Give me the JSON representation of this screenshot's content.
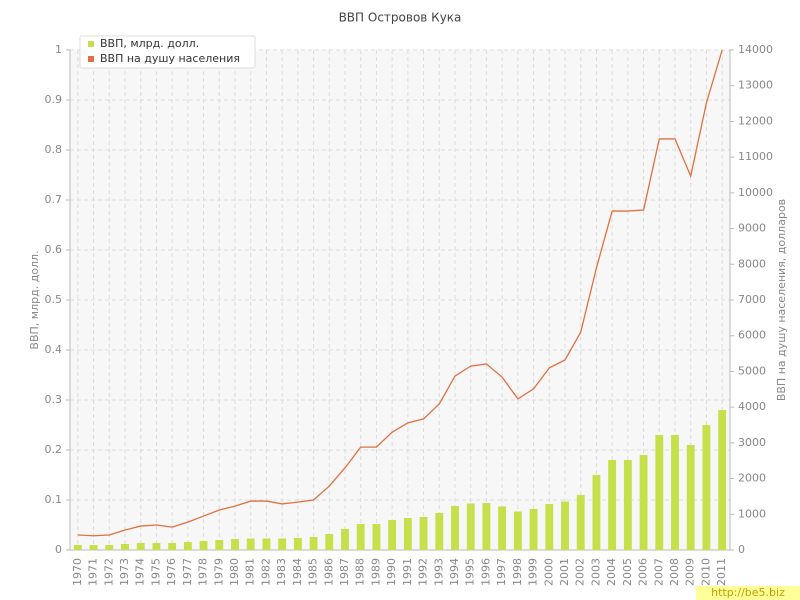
{
  "chart_data": {
    "type": "bar-line",
    "title": "ВВП Островов Кука",
    "y_label": "ВВП, млрд. долл.",
    "y2_label": "ВВП на душу населения, долларов",
    "categories": [
      "1970",
      "1971",
      "1972",
      "1973",
      "1974",
      "1975",
      "1976",
      "1977",
      "1978",
      "1979",
      "1980",
      "1981",
      "1982",
      "1983",
      "1984",
      "1985",
      "1986",
      "1987",
      "1988",
      "1989",
      "1990",
      "1991",
      "1992",
      "1993",
      "1994",
      "1995",
      "1996",
      "1997",
      "1998",
      "1999",
      "2000",
      "2001",
      "2002",
      "2003",
      "2004",
      "2005",
      "2006",
      "2007",
      "2008",
      "2009",
      "2010",
      "2011"
    ],
    "series": [
      {
        "name": "ВВП, млрд. долл.",
        "color": "#c5e04a",
        "kind": "bar",
        "values": [
          0.01,
          0.01,
          0.01,
          0.012,
          0.014,
          0.014,
          0.014,
          0.016,
          0.018,
          0.02,
          0.022,
          0.023,
          0.023,
          0.023,
          0.024,
          0.026,
          0.032,
          0.042,
          0.052,
          0.052,
          0.06,
          0.064,
          0.066,
          0.074,
          0.088,
          0.093,
          0.094,
          0.087,
          0.077,
          0.082,
          0.092,
          0.097,
          0.11,
          0.15,
          0.18,
          0.18,
          0.19,
          0.23,
          0.23,
          0.21,
          0.25,
          0.28
        ]
      },
      {
        "name": "ВВП на душу населения",
        "color": "#e07040",
        "kind": "line",
        "axis": "y2",
        "values": [
          420,
          400,
          420,
          560,
          670,
          700,
          640,
          780,
          950,
          1120,
          1230,
          1370,
          1370,
          1290,
          1340,
          1400,
          1790,
          2300,
          2880,
          2880,
          3300,
          3560,
          3670,
          4090,
          4870,
          5150,
          5210,
          4840,
          4230,
          4510,
          5100,
          5320,
          6100,
          7900,
          9490,
          9490,
          9520,
          11510,
          11510,
          10470,
          12520,
          14000
        ]
      }
    ],
    "ylim": [
      0,
      1
    ],
    "yticks": [
      0,
      0.1,
      0.2,
      0.3,
      0.4,
      0.5,
      0.6,
      0.7,
      0.8,
      0.9,
      1
    ],
    "y2lim": [
      0,
      14000
    ],
    "y2ticks": [
      0,
      1000,
      2000,
      3000,
      4000,
      5000,
      6000,
      7000,
      8000,
      9000,
      10000,
      11000,
      12000,
      13000,
      14000
    ],
    "grid": true,
    "legend": "top-left"
  },
  "watermark": "http://be5.biz"
}
